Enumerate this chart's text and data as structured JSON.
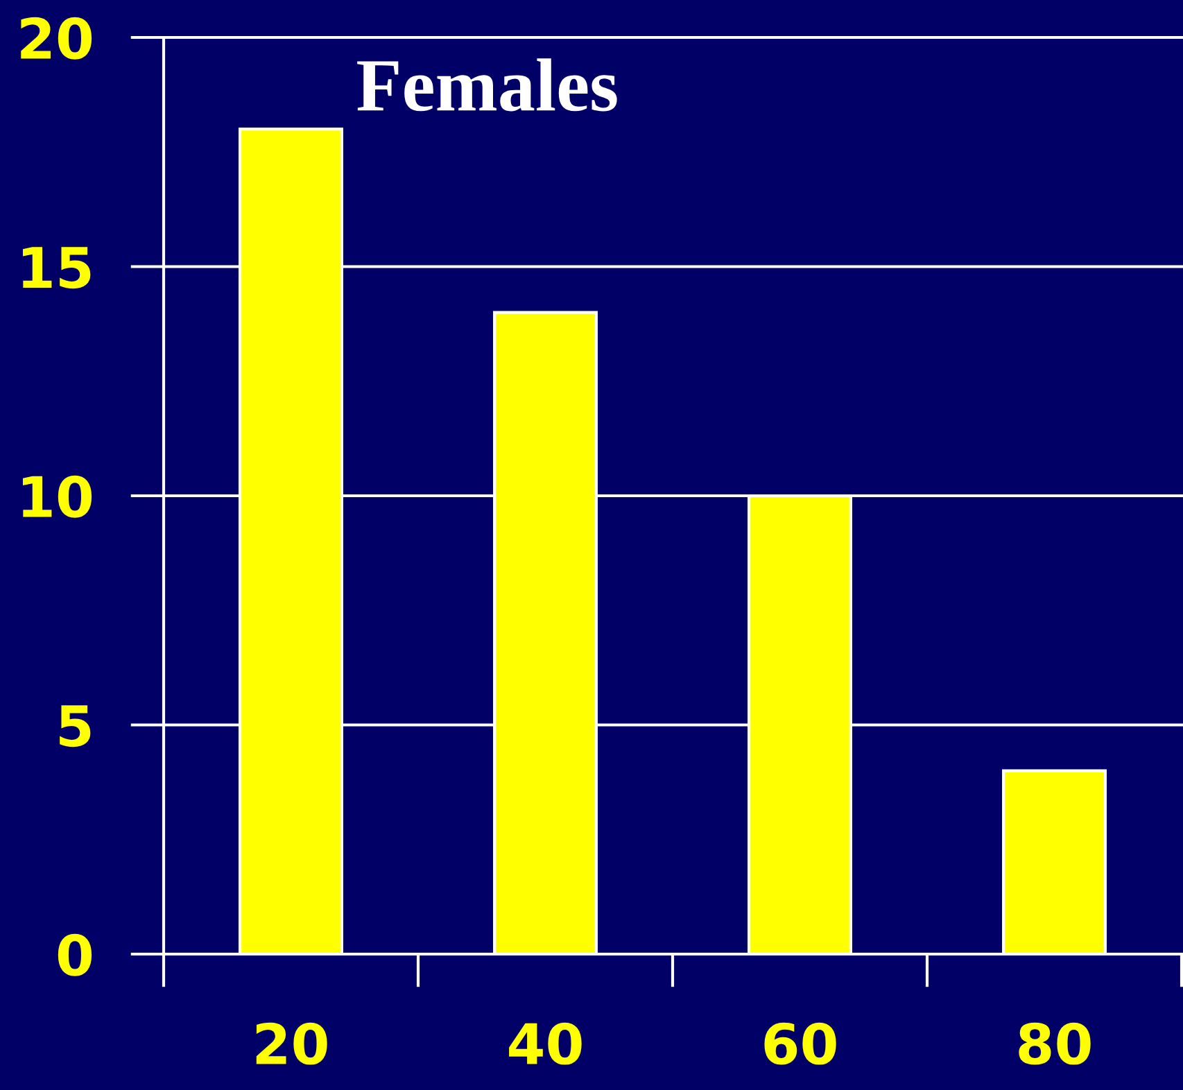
{
  "chart_data": {
    "type": "bar",
    "title": "Females",
    "categories": [
      "20",
      "40",
      "60",
      "80"
    ],
    "values": [
      18,
      14,
      10,
      4
    ],
    "color": "#ffff00",
    "ylim": [
      0,
      20
    ],
    "yticks": [
      0,
      5,
      10,
      15,
      20
    ],
    "grid": "y"
  }
}
